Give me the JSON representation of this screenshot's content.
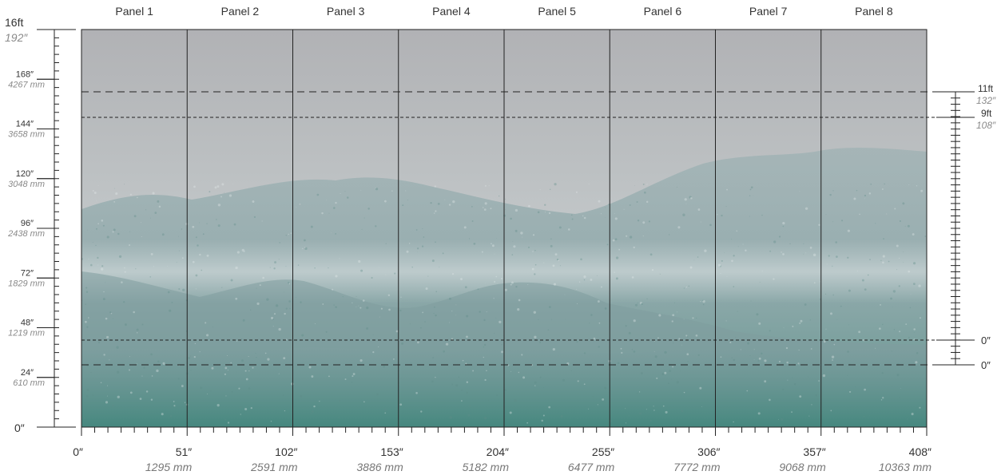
{
  "panels": [
    "Panel 1",
    "Panel 2",
    "Panel 3",
    "Panel 4",
    "Panel 5",
    "Panel 6",
    "Panel 7",
    "Panel 8"
  ],
  "scene": "misty snow-covered forested mountains",
  "colors": {
    "sky": "#b4b6b8",
    "fog": "#c3c8ca",
    "forest": "#4f8f86",
    "line": "#222222"
  },
  "left_ruler": {
    "top_main": "16ft",
    "top_sub": "192″",
    "bottom": "0″",
    "ticks": [
      {
        "main": "168″",
        "sub": "4267 mm"
      },
      {
        "main": "144″",
        "sub": "3658 mm"
      },
      {
        "main": "120″",
        "sub": "3048 mm"
      },
      {
        "main": "96″",
        "sub": "2438 mm"
      },
      {
        "main": "72″",
        "sub": "1829 mm"
      },
      {
        "main": "48″",
        "sub": "1219 mm"
      },
      {
        "main": "24″",
        "sub": "610 mm"
      }
    ]
  },
  "bottom_ruler": {
    "ticks": [
      {
        "inch": "0″",
        "mm": ""
      },
      {
        "inch": "51″",
        "mm": "1295 mm"
      },
      {
        "inch": "102″",
        "mm": "2591 mm"
      },
      {
        "inch": "153″",
        "mm": "3886 mm"
      },
      {
        "inch": "204″",
        "mm": "5182 mm"
      },
      {
        "inch": "255″",
        "mm": "6477 mm"
      },
      {
        "inch": "306″",
        "mm": "7772 mm"
      },
      {
        "inch": "357″",
        "mm": "9068 mm"
      },
      {
        "inch": "408″",
        "mm": "10363 mm"
      }
    ]
  },
  "right_ruler": {
    "labels": [
      {
        "ft": "11ft",
        "in": "132″"
      },
      {
        "ft": "9ft",
        "in": "108″"
      },
      {
        "zero": "0″"
      },
      {
        "zero": "0″"
      }
    ]
  }
}
